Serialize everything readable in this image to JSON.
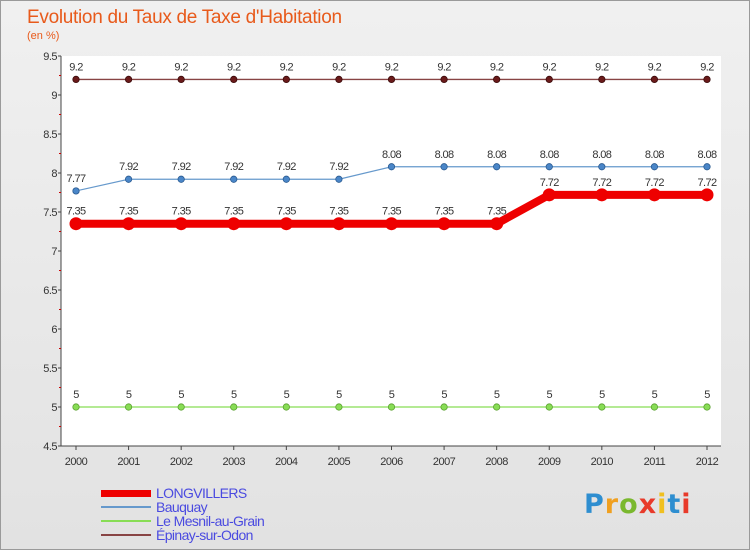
{
  "header": {
    "title": "Evolution du Taux de Taxe d'Habitation",
    "subtitle": "(en %)"
  },
  "logo": {
    "letters": [
      "P",
      "r",
      "o",
      "x",
      "i",
      "t",
      "i"
    ],
    "colors": [
      "#2e8ed0",
      "#f0a020",
      "#7ab82e",
      "#e83a2a",
      "#f0c020",
      "#2e8ed0",
      "#e83a2a"
    ]
  },
  "chart_data": {
    "type": "line",
    "x": [
      "2000",
      "2001",
      "2002",
      "2003",
      "2004",
      "2005",
      "2006",
      "2007",
      "2008",
      "2009",
      "2010",
      "2011",
      "2012"
    ],
    "ylim": [
      4.5,
      9.5
    ],
    "yticks": [
      "4.5",
      "5",
      "5.5",
      "6",
      "6.5",
      "7",
      "7.5",
      "8",
      "8.5",
      "9",
      "9.5"
    ],
    "grid": false,
    "legend_position": "bottom-left",
    "series": [
      {
        "name": "LONGVILLERS",
        "color": "#ee0000",
        "labels": [
          "7.35",
          "7.35",
          "7.35",
          "7.35",
          "7.35",
          "7.35",
          "7.35",
          "7.35",
          "7.35",
          "7.72",
          "7.72",
          "7.72",
          "7.72"
        ],
        "values": [
          7.35,
          7.35,
          7.35,
          7.35,
          7.35,
          7.35,
          7.35,
          7.35,
          7.35,
          7.72,
          7.72,
          7.72,
          7.72
        ]
      },
      {
        "name": "Bauquay",
        "color": "#6699cc",
        "labels": [
          "7.77",
          "7.92",
          "7.92",
          "7.92",
          "7.92",
          "7.92",
          "8.08",
          "8.08",
          "8.08",
          "8.08",
          "8.08",
          "8.08",
          "8.08"
        ],
        "values": [
          7.77,
          7.92,
          7.92,
          7.92,
          7.92,
          7.92,
          8.08,
          8.08,
          8.08,
          8.08,
          8.08,
          8.08,
          8.08
        ]
      },
      {
        "name": "Le Mesnil-au-Grain",
        "color": "#88dd55",
        "labels": [
          "5",
          "5",
          "5",
          "5",
          "5",
          "5",
          "5",
          "5",
          "5",
          "5",
          "5",
          "5",
          "5"
        ],
        "values": [
          5,
          5,
          5,
          5,
          5,
          5,
          5,
          5,
          5,
          5,
          5,
          5,
          5
        ]
      },
      {
        "name": "Épinay-sur-Odon",
        "color": "#884444",
        "labels": [
          "9.2",
          "9.2",
          "9.2",
          "9.2",
          "9.2",
          "9.2",
          "9.2",
          "9.2",
          "9.2",
          "9.2",
          "9.2",
          "9.2",
          "9.2"
        ],
        "values": [
          9.2,
          9.2,
          9.2,
          9.2,
          9.2,
          9.2,
          9.2,
          9.2,
          9.2,
          9.2,
          9.2,
          9.2,
          9.2
        ]
      }
    ]
  }
}
